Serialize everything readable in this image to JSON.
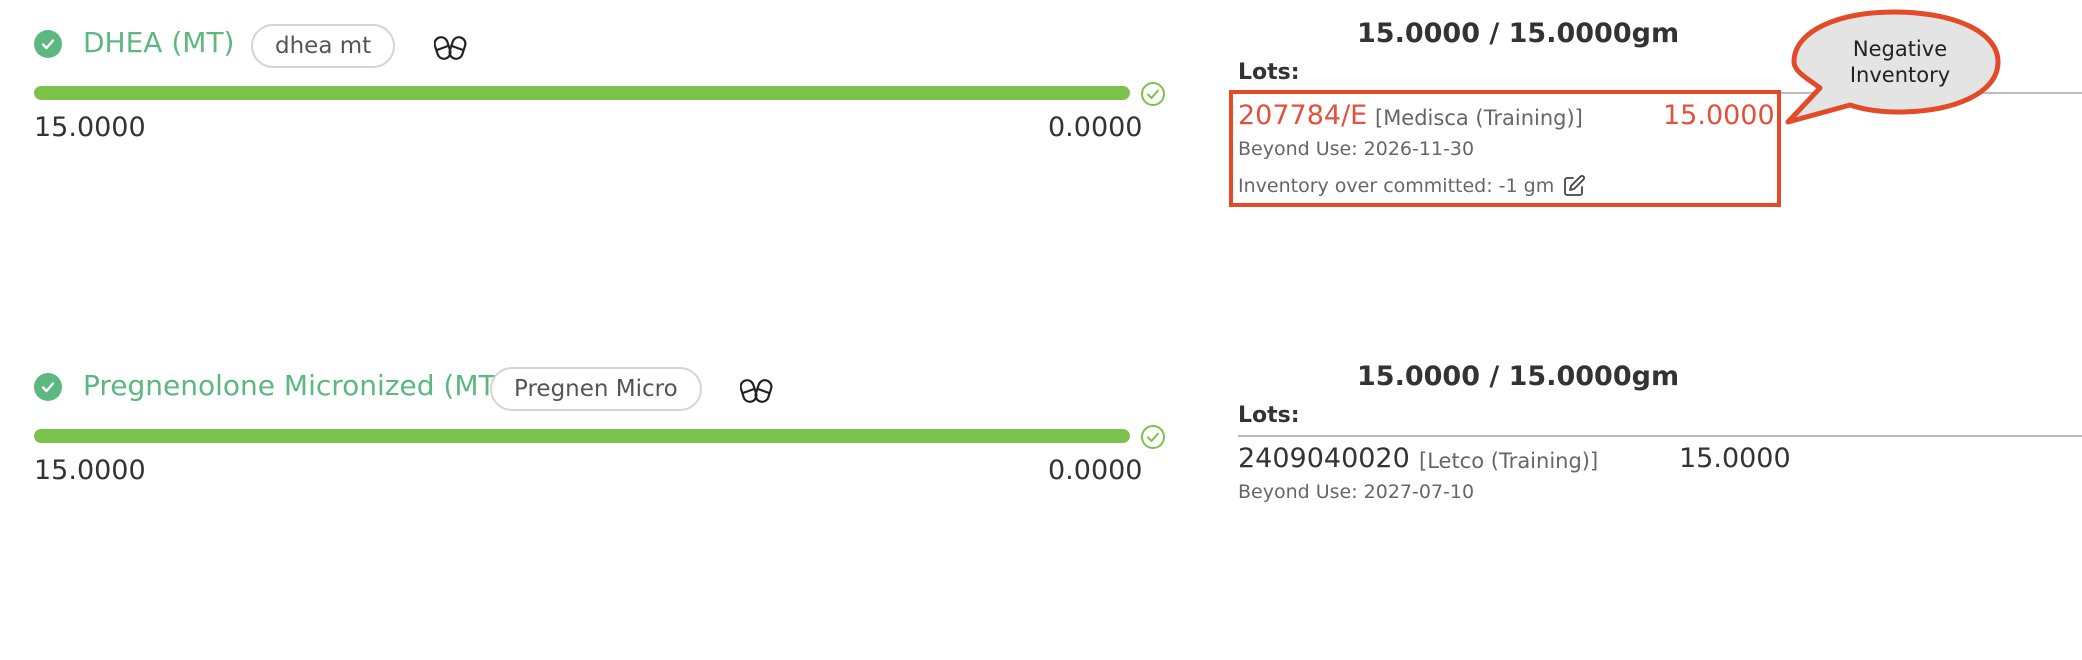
{
  "items": [
    {
      "name": "DHEA (MT)",
      "tag": "dhea mt",
      "progress_fraction": 1.0,
      "value_left": "15.0000",
      "value_right": "0.0000",
      "quantity_header": "15.0000 /  15.0000gm",
      "lots_label": "Lots:",
      "lot": {
        "number": "207784/E",
        "vendor": "[Medisca (Training)]",
        "quantity": "15.0000",
        "beyond_use": "Beyond Use: 2026-11-30",
        "over_committed": "Inventory over committed: -1 gm"
      }
    },
    {
      "name": "Pregnenolone Micronized (MT)",
      "tag": "Pregnen Micro",
      "progress_fraction": 1.0,
      "value_left": "15.0000",
      "value_right": "0.0000",
      "quantity_header": "15.0000 /  15.0000gm",
      "lots_label": "Lots:",
      "lot": {
        "number": "2409040020",
        "vendor": "[Letco (Training)]",
        "quantity": "15.0000",
        "beyond_use": "Beyond Use: 2027-07-10"
      }
    }
  ],
  "callout": {
    "text_line1": "Negative",
    "text_line2": "Inventory"
  },
  "colors": {
    "success_green": "#5cb87f",
    "bar_green": "#7cc24a",
    "negative_red": "#e2513c",
    "highlight_border": "#e24a28"
  },
  "icons": [
    "check-circle-icon",
    "pill-icon",
    "check-outline-icon",
    "edit-icon"
  ]
}
